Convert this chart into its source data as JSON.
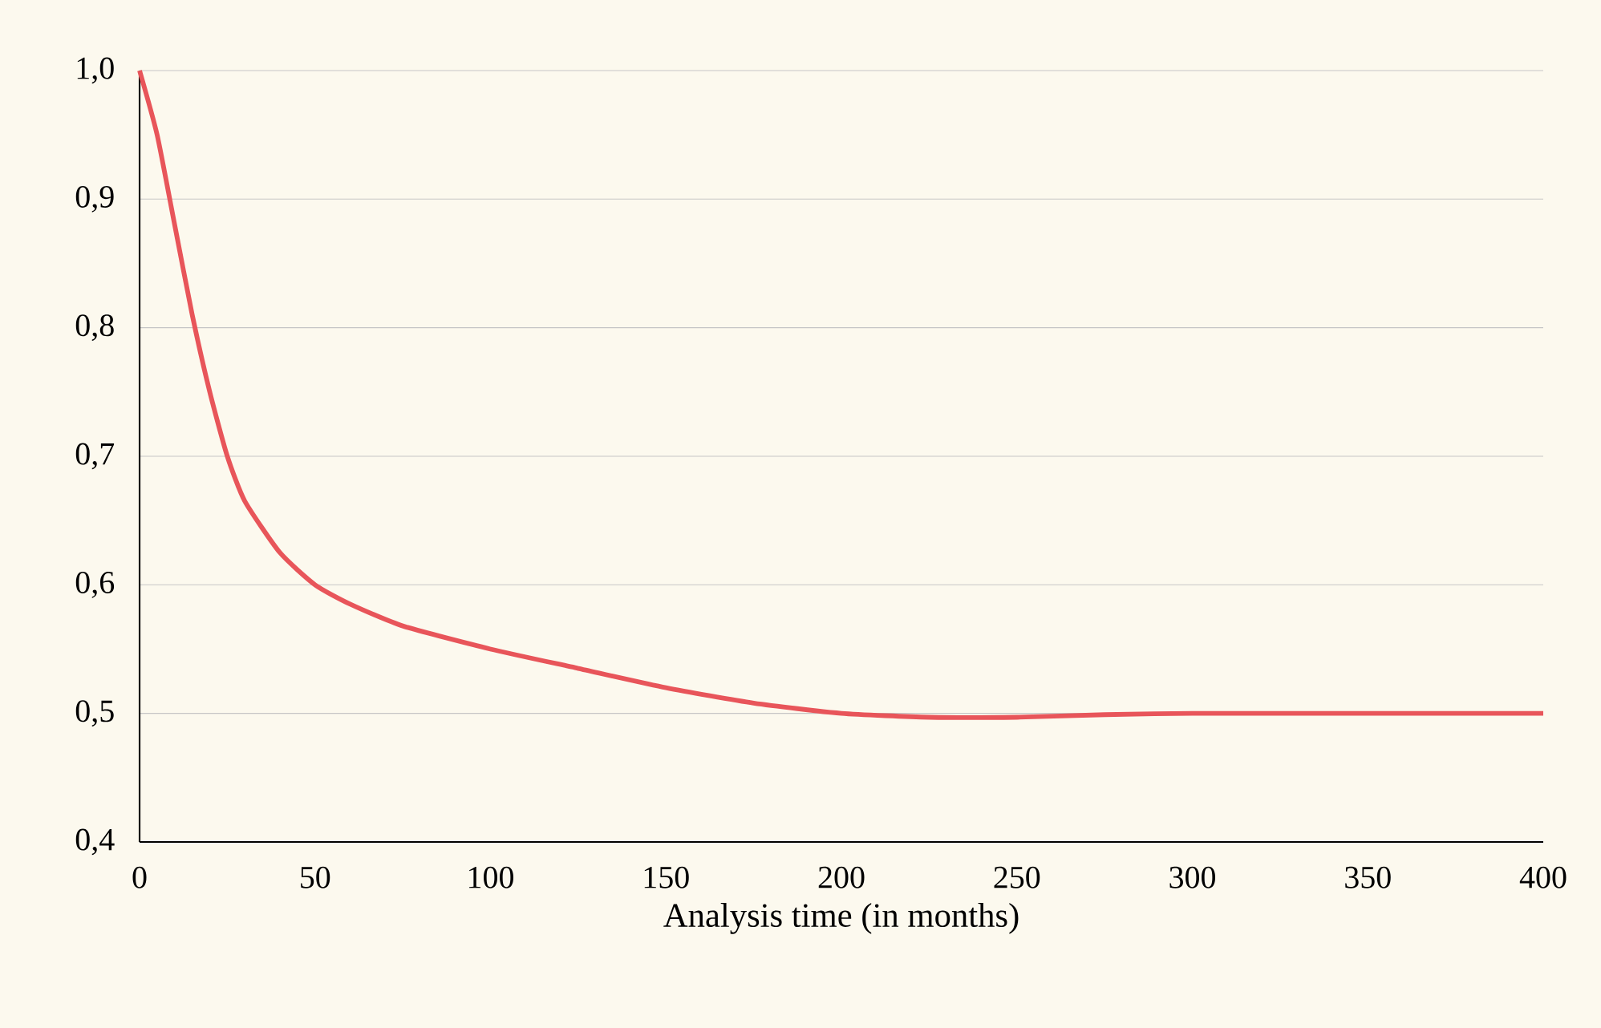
{
  "chart_data": {
    "type": "line",
    "xlabel": "Analysis time (in months)",
    "series": [
      {
        "color": "#e8555a",
        "x": [
          0,
          5,
          10,
          15,
          20,
          25,
          30,
          40,
          50,
          60,
          75,
          100,
          125,
          150,
          175,
          200,
          225,
          250,
          275,
          300,
          350,
          400
        ],
        "values": [
          1.0,
          0.95,
          0.88,
          0.81,
          0.75,
          0.7,
          0.665,
          0.625,
          0.6,
          0.585,
          0.568,
          0.55,
          0.535,
          0.52,
          0.508,
          0.5,
          0.497,
          0.497,
          0.499,
          0.5,
          0.5,
          0.5
        ]
      }
    ],
    "xlim": [
      0,
      400
    ],
    "ylim": [
      0.4,
      1.0
    ],
    "xticks": [
      0,
      50,
      100,
      150,
      200,
      250,
      300,
      350,
      400
    ],
    "yticks": [
      {
        "value": 0.4,
        "label": "0,4"
      },
      {
        "value": 0.5,
        "label": "0,5"
      },
      {
        "value": 0.6,
        "label": "0,6"
      },
      {
        "value": 0.7,
        "label": "0,7"
      },
      {
        "value": 0.8,
        "label": "0,8"
      },
      {
        "value": 0.9,
        "label": "0,9"
      },
      {
        "value": 1.0,
        "label": "1,0"
      }
    ],
    "grid": "y",
    "marker": "none",
    "line_style": "solid"
  }
}
